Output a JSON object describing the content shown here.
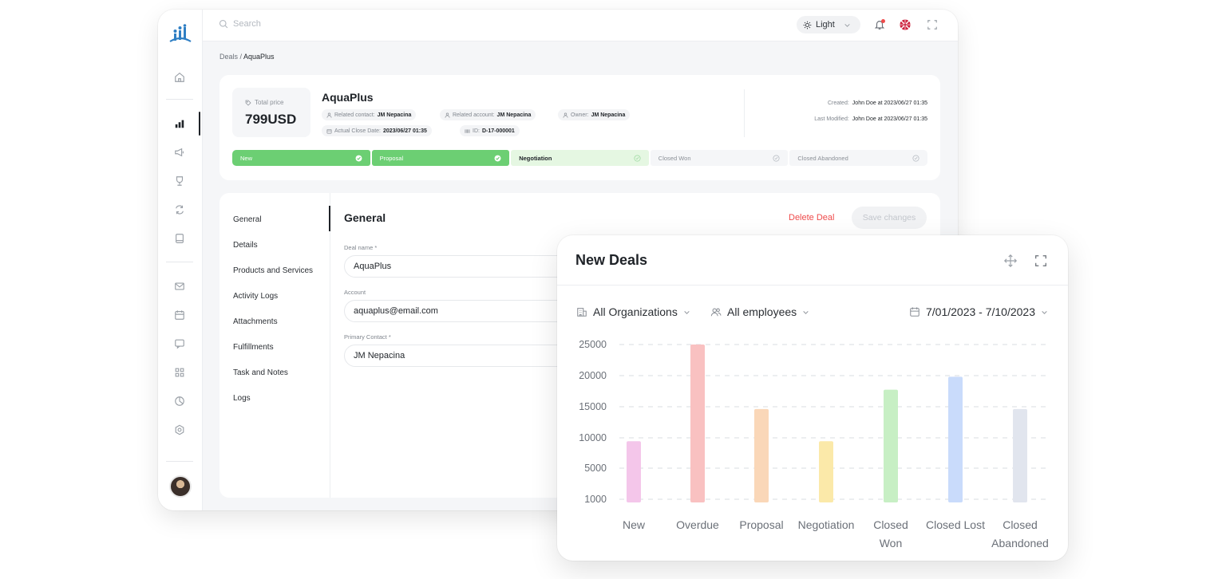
{
  "topbar": {
    "search_placeholder": "Search",
    "theme_label": "Light"
  },
  "breadcrumb": {
    "parent": "Deals",
    "separator": " / ",
    "current": "AquaPlus"
  },
  "deal": {
    "price_label": "Total price",
    "price_value": "799USD",
    "name": "AquaPlus",
    "chips": [
      {
        "label": "Related contact:",
        "value": "JM Nepacina",
        "icon": "user-icon"
      },
      {
        "label": "Related account:",
        "value": "JM Nepacina",
        "icon": "user-icon"
      },
      {
        "label": "Owner:",
        "value": "JM Nepacina",
        "icon": "user-icon"
      },
      {
        "label": "Actual Close Date:",
        "value": "2023/06/27 01:35",
        "icon": "calendar-icon"
      },
      {
        "label": "ID:",
        "value": "D-17-000001",
        "icon": "barcode-icon"
      }
    ],
    "created_label": "Created:",
    "created_value": "John Doe at 2023/06/27 01:35",
    "modified_label": "Last Modified:",
    "modified_value": "John Doe at 2023/06/27 01:35",
    "stages": [
      {
        "label": "New",
        "state": "done"
      },
      {
        "label": "Proposal",
        "state": "done"
      },
      {
        "label": "Negotiation",
        "state": "current"
      },
      {
        "label": "Closed Won",
        "state": "todo"
      },
      {
        "label": "Closed Abandoned",
        "state": "todo"
      }
    ]
  },
  "form": {
    "nav": [
      "General",
      "Details",
      "Products and Services",
      "Activity Logs",
      "Attachments",
      "Fulfillments",
      "Task and Notes",
      "Logs"
    ],
    "title": "General",
    "delete_label": "Delete Deal",
    "save_label": "Save changes",
    "fields": [
      {
        "label": "Deal name *",
        "value": "AquaPlus"
      },
      {
        "label": "Account",
        "value": "aquaplus@email.com"
      },
      {
        "label": "Primary Contact *",
        "value": "JM Nepacina"
      }
    ]
  },
  "chart_card": {
    "title": "New Deals",
    "filter_org": "All Organizations",
    "filter_emp": "All employees",
    "filter_date": "7/01/2023 - 7/10/2023"
  },
  "colors": {
    "stage_done": "#6ccf73",
    "stage_current": "#e5f7e2",
    "danger": "#ef4b4b"
  },
  "chart_data": {
    "type": "bar",
    "title": "New Deals",
    "categories": [
      "New",
      "Overdue",
      "Proposal",
      "Negotiation",
      "Closed Won",
      "Closed Lost",
      "Closed Abandoned"
    ],
    "values": [
      10000,
      25000,
      15000,
      10000,
      18000,
      20000,
      15000
    ],
    "bar_colors": [
      "#f4c6ea",
      "#f9c1c1",
      "#fad7b8",
      "#fbe9a9",
      "#c7efc4",
      "#c9dbfb",
      "#e1e5ee"
    ],
    "yticks": [
      1000,
      5000,
      10000,
      15000,
      20000,
      25000
    ],
    "ylim": [
      0,
      25000
    ],
    "grid": true,
    "legend": false
  }
}
